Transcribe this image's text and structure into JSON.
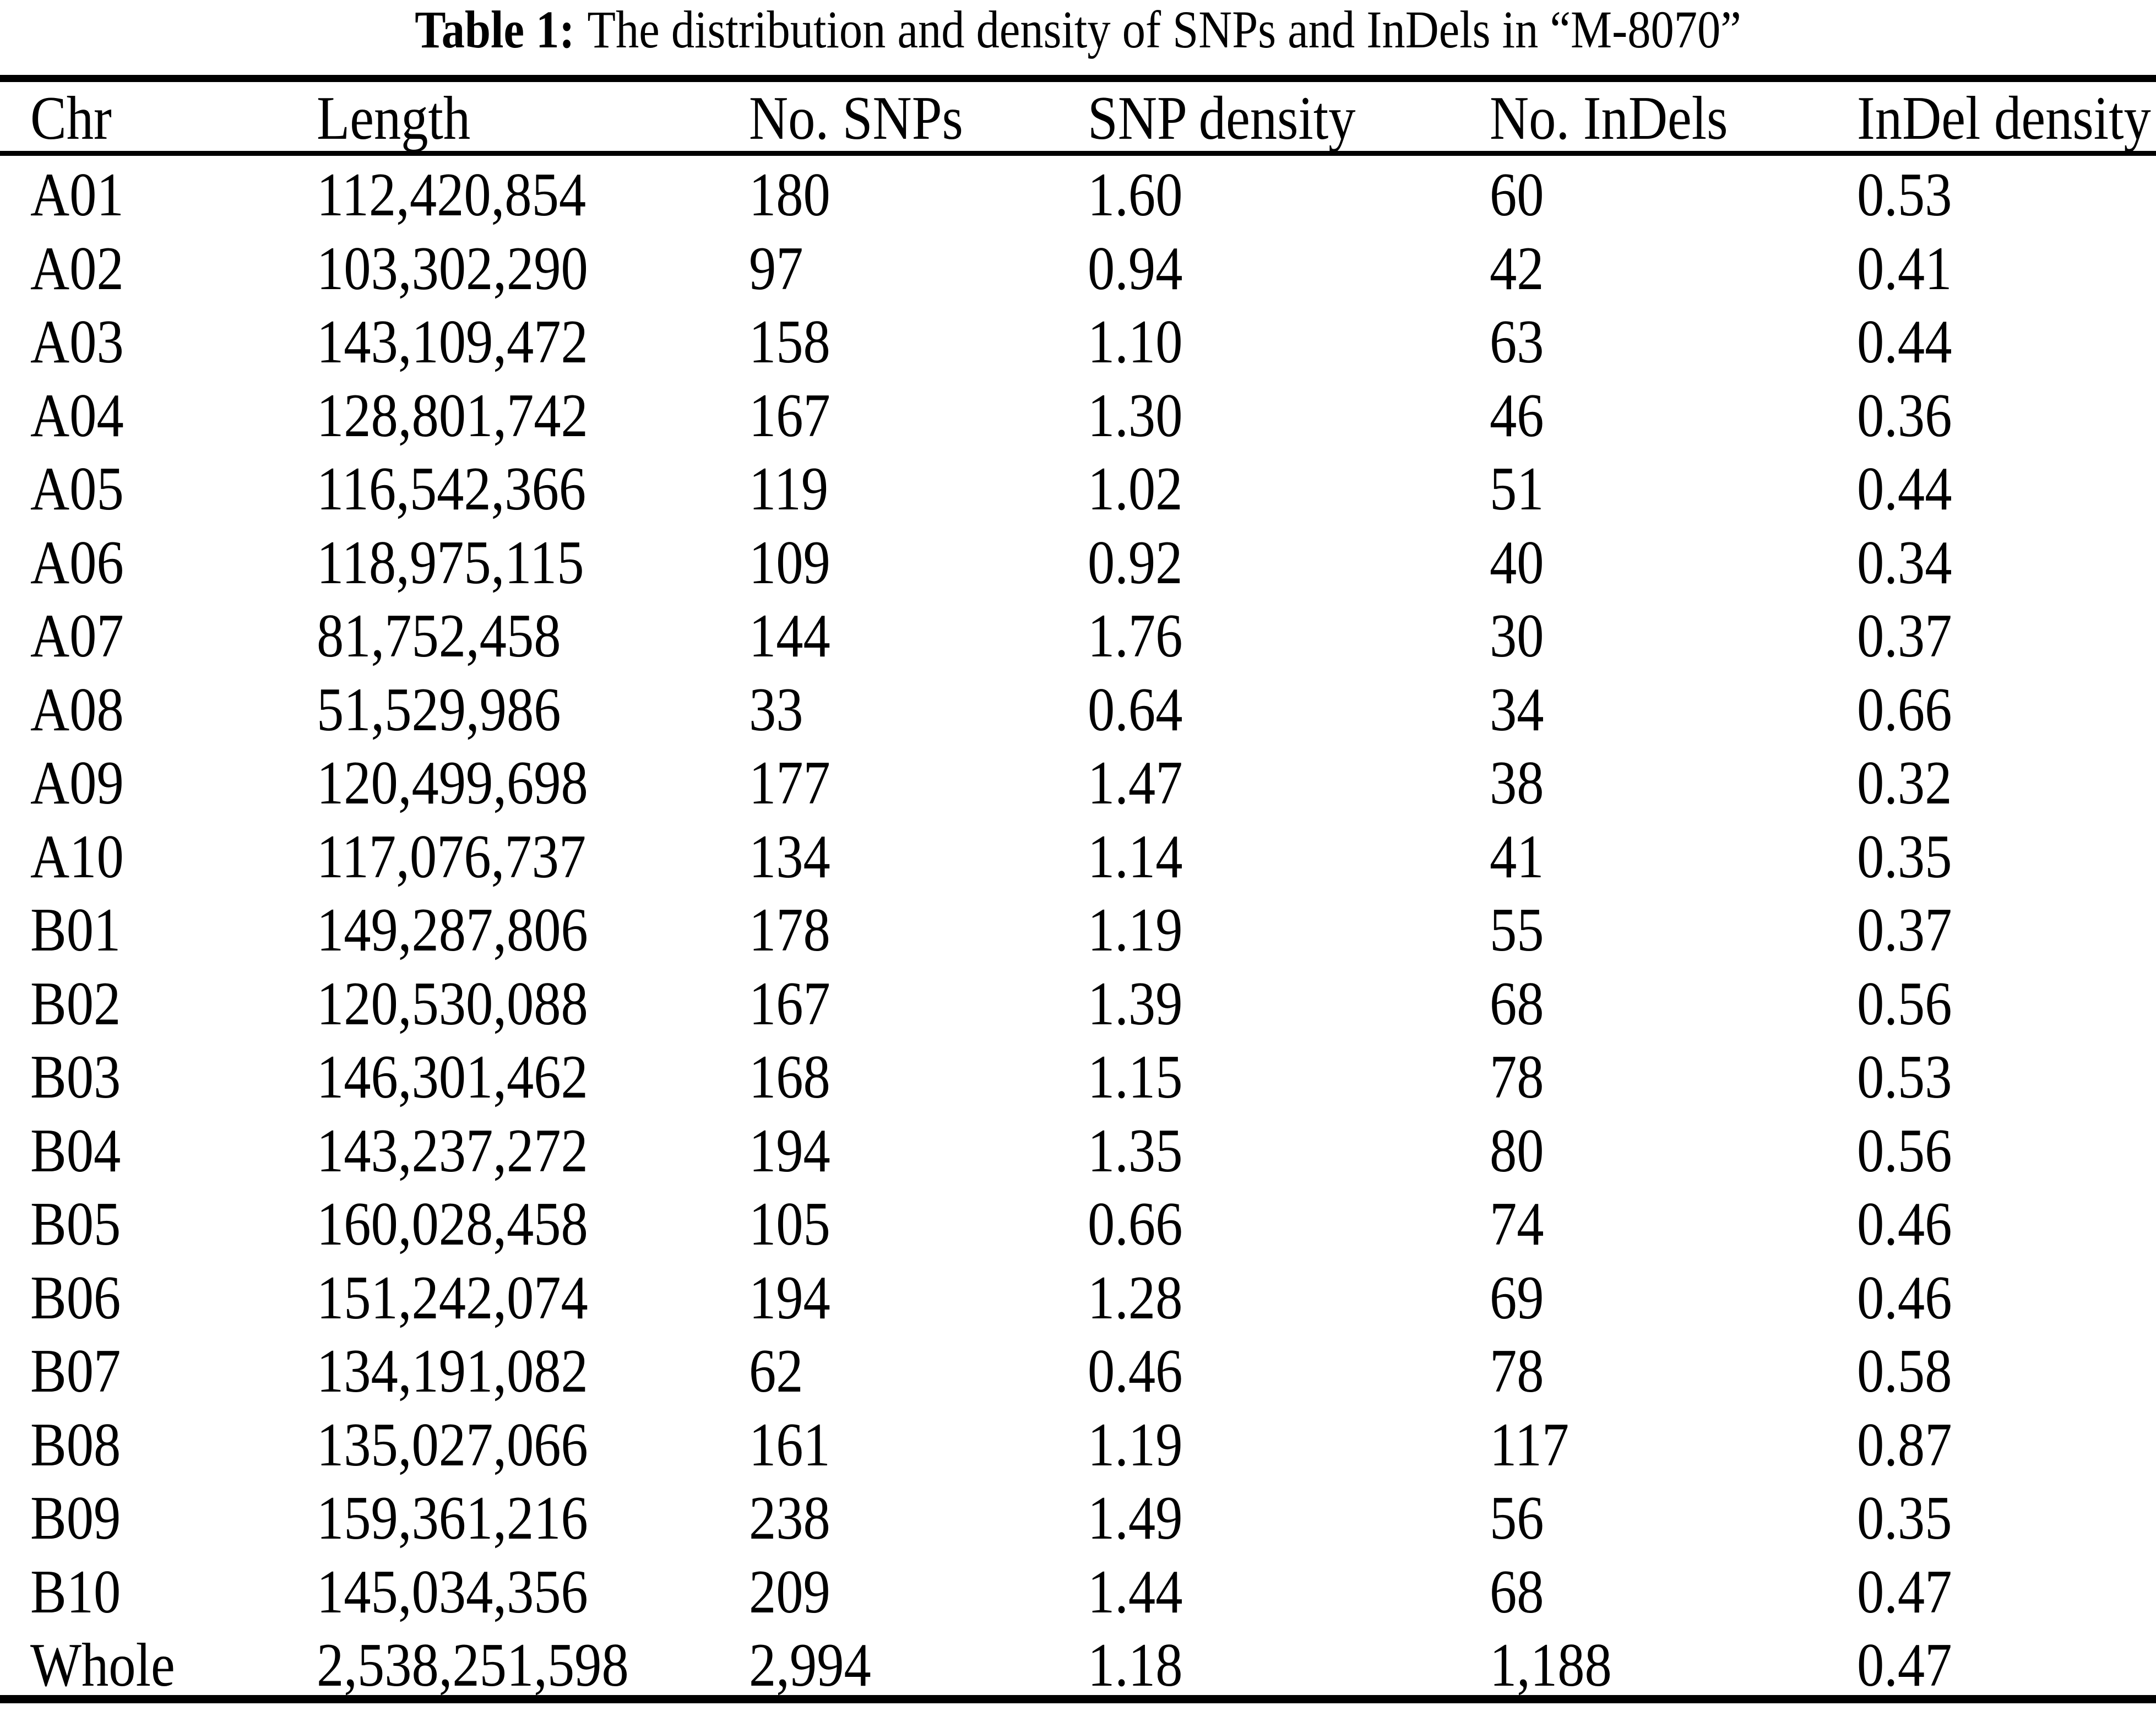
{
  "page": {
    "background_color": "#ffffff",
    "text_color": "#000000"
  },
  "title": {
    "label": "Table 1:",
    "text": "The distribution and density of SNPs and InDels in “M-8070”"
  },
  "table": {
    "columns": [
      "Chr",
      "Length",
      "No. SNPs",
      "SNP density",
      "No. InDels",
      "InDel density"
    ],
    "rows": [
      [
        "A01",
        "112,420,854",
        "180",
        "1.60",
        "60",
        "0.53"
      ],
      [
        "A02",
        "103,302,290",
        "97",
        "0.94",
        "42",
        "0.41"
      ],
      [
        "A03",
        "143,109,472",
        "158",
        "1.10",
        "63",
        "0.44"
      ],
      [
        "A04",
        "128,801,742",
        "167",
        "1.30",
        "46",
        "0.36"
      ],
      [
        "A05",
        "116,542,366",
        "119",
        "1.02",
        "51",
        "0.44"
      ],
      [
        "A06",
        "118,975,115",
        "109",
        "0.92",
        "40",
        "0.34"
      ],
      [
        "A07",
        "81,752,458",
        "144",
        "1.76",
        "30",
        "0.37"
      ],
      [
        "A08",
        "51,529,986",
        "33",
        "0.64",
        "34",
        "0.66"
      ],
      [
        "A09",
        "120,499,698",
        "177",
        "1.47",
        "38",
        "0.32"
      ],
      [
        "A10",
        "117,076,737",
        "134",
        "1.14",
        "41",
        "0.35"
      ],
      [
        "B01",
        "149,287,806",
        "178",
        "1.19",
        "55",
        "0.37"
      ],
      [
        "B02",
        "120,530,088",
        "167",
        "1.39",
        "68",
        "0.56"
      ],
      [
        "B03",
        "146,301,462",
        "168",
        "1.15",
        "78",
        "0.53"
      ],
      [
        "B04",
        "143,237,272",
        "194",
        "1.35",
        "80",
        "0.56"
      ],
      [
        "B05",
        "160,028,458",
        "105",
        "0.66",
        "74",
        "0.46"
      ],
      [
        "B06",
        "151,242,074",
        "194",
        "1.28",
        "69",
        "0.46"
      ],
      [
        "B07",
        "134,191,082",
        "62",
        "0.46",
        "78",
        "0.58"
      ],
      [
        "B08",
        "135,027,066",
        "161",
        "1.19",
        "117",
        "0.87"
      ],
      [
        "B09",
        "159,361,216",
        "238",
        "1.49",
        "56",
        "0.35"
      ],
      [
        "B10",
        "145,034,356",
        "209",
        "1.44",
        "68",
        "0.47"
      ],
      [
        "Whole",
        "2,538,251,598",
        "2,994",
        "1.18",
        "1,188",
        "0.47"
      ]
    ]
  }
}
